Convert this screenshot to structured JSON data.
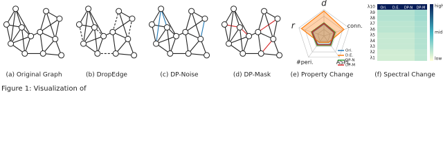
{
  "panels": [
    {
      "caption": "(a) Original Graph"
    },
    {
      "caption": "(b) DropEdge"
    },
    {
      "caption": "(c) DP-Noise"
    },
    {
      "caption": "(d) DP-Mask"
    }
  ],
  "radar": {
    "caption": "(e) Property Change",
    "axes": [
      "d",
      "conn.",
      "ASPL",
      "#peri.",
      "r"
    ],
    "series": [
      {
        "name": "Ori.",
        "color": "#1f77b4",
        "values": [
          0.45,
          0.4,
          0.4,
          0.4,
          0.45
        ]
      },
      {
        "name": "D.E.",
        "color": "#ff7f0e",
        "values": [
          0.95,
          0.8,
          0.3,
          0.3,
          0.9
        ]
      },
      {
        "name": "DP-N",
        "color": "#2ca02c",
        "values": [
          0.5,
          0.45,
          0.45,
          0.45,
          0.5
        ]
      },
      {
        "name": "DP-M",
        "color": "#d62728",
        "values": [
          0.48,
          0.42,
          0.42,
          0.42,
          0.48
        ]
      }
    ]
  },
  "heatmap": {
    "caption": "(f) Spectral Change",
    "rows": [
      "λ10",
      "λ9",
      "λ8",
      "λ7",
      "λ6",
      "λ5",
      "λ4",
      "λ3",
      "λ2",
      "λ1"
    ],
    "columns": [
      "Ori.",
      "D.E.",
      "DP-N",
      "DP-M"
    ],
    "values": [
      [
        1.0,
        1.0,
        1.0,
        1.0
      ],
      [
        0.2,
        0.2,
        0.2,
        0.25
      ],
      [
        0.2,
        0.2,
        0.2,
        0.25
      ],
      [
        0.18,
        0.18,
        0.18,
        0.22
      ],
      [
        0.18,
        0.18,
        0.18,
        0.22
      ],
      [
        0.15,
        0.15,
        0.15,
        0.2
      ],
      [
        0.15,
        0.15,
        0.15,
        0.2
      ],
      [
        0.15,
        0.15,
        0.15,
        0.2
      ],
      [
        0.12,
        0.12,
        0.12,
        0.18
      ],
      [
        0.12,
        0.12,
        0.12,
        0.18
      ]
    ],
    "colorbar": [
      "high",
      "mid",
      "low"
    ]
  },
  "caption": "Figure 1: Visualization of"
}
